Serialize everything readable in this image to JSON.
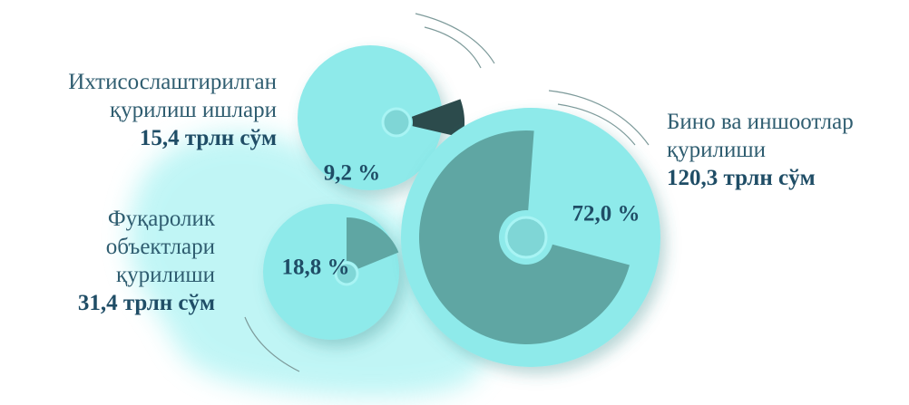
{
  "chart_data": {
    "type": "pie",
    "categories": [
      "Ихтисослаштирилган қурилиш ишлари",
      "Бино ва иншоотлар қурилиши",
      "Фуқаролик объектлари қурилиши"
    ],
    "amounts": [
      "15,4 трлн сўм",
      "120,3 трлн сўм",
      "31,4 трлн сўм"
    ],
    "values": [
      9.2,
      72.0,
      18.8
    ],
    "value_labels": [
      "9,2 %",
      "72,0 %",
      "18,8 %"
    ],
    "colors": [
      "#2c4b4c",
      "#5fa6a3",
      "#5fa6a3"
    ]
  }
}
